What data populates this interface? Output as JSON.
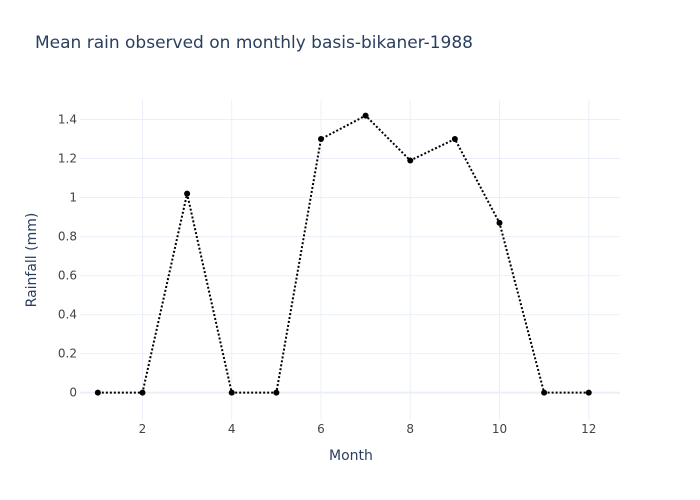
{
  "chart_data": {
    "type": "line",
    "title": "Mean rain observed on monthly basis-bikaner-1988",
    "xlabel": "Month",
    "ylabel": "Rainfall (mm)",
    "x": [
      1,
      2,
      3,
      4,
      5,
      6,
      7,
      8,
      9,
      10,
      11,
      12
    ],
    "y": [
      0,
      0,
      1.02,
      0,
      0,
      1.3,
      1.42,
      1.19,
      1.3,
      0.87,
      0,
      0
    ],
    "x_ticks": [
      2,
      4,
      6,
      8,
      10,
      12
    ],
    "x_tick_labels": [
      "2",
      "4",
      "6",
      "8",
      "10",
      "12"
    ],
    "y_ticks": [
      0,
      0.2,
      0.4,
      0.6,
      0.8,
      1,
      1.2,
      1.4
    ],
    "y_tick_labels": [
      "0",
      "0.2",
      "0.4",
      "0.6",
      "0.8",
      "1",
      "1.2",
      "1.4"
    ],
    "xlim": [
      0.6,
      12.7
    ],
    "ylim": [
      -0.14,
      1.5
    ],
    "grid": true,
    "line_style": "dotted",
    "marker": "circle",
    "colors": {
      "line": "#000000",
      "marker": "#000000",
      "grid": "#ebf0f8",
      "text": "#2a3f5f",
      "tick_text": "#444444",
      "background": "#ffffff"
    }
  }
}
